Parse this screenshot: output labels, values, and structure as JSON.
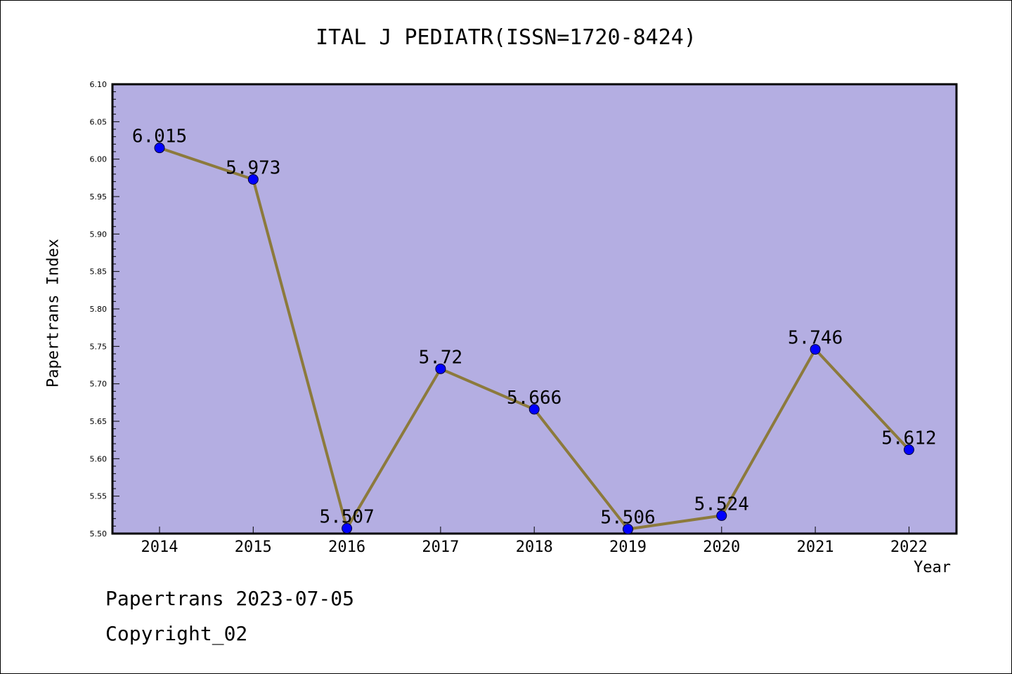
{
  "chart_data": {
    "type": "line",
    "title": "ITAL J PEDIATR(ISSN=1720-8424)",
    "xlabel": "Year",
    "ylabel": "Papertrans Index",
    "x": [
      "2014",
      "2015",
      "2016",
      "2017",
      "2018",
      "2019",
      "2020",
      "2021",
      "2022"
    ],
    "series": [
      {
        "values": [
          6.015,
          5.973,
          5.507,
          5.72,
          5.666,
          5.506,
          5.524,
          5.746,
          5.612
        ],
        "labels": [
          "6.015",
          "5.973",
          "5.507",
          "5.72",
          "5.666",
          "5.506",
          "5.524",
          "5.746",
          "5.612"
        ]
      }
    ],
    "ylim": [
      5.5,
      6.1
    ],
    "yticks": [
      "5.50",
      "5.55",
      "5.60",
      "5.65",
      "5.70",
      "5.75",
      "5.80",
      "5.85",
      "5.90",
      "5.95",
      "6.00",
      "6.05",
      "6.10"
    ],
    "grid": false,
    "colors": {
      "plot_background": "#b4aee2",
      "line": "#8c7a3c",
      "marker": "#0000ff"
    }
  },
  "footer": {
    "line1": "Papertrans 2023-07-05",
    "line2": "Copyright_02"
  }
}
